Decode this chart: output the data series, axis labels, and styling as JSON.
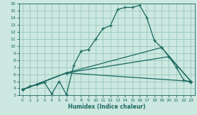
{
  "xlabel": "Humidex (Indice chaleur)",
  "xlim": [
    -0.5,
    23.5
  ],
  "ylim": [
    3,
    16
  ],
  "xticks": [
    0,
    1,
    2,
    3,
    4,
    5,
    6,
    7,
    8,
    9,
    10,
    11,
    12,
    13,
    14,
    15,
    16,
    17,
    18,
    19,
    20,
    21,
    22,
    23
  ],
  "yticks": [
    3,
    4,
    5,
    6,
    7,
    8,
    9,
    10,
    11,
    12,
    13,
    14,
    15,
    16
  ],
  "bg_color": "#cce8e0",
  "grid_color": "#9ac8bc",
  "line_color": "#1a6860",
  "lines": [
    {
      "x": [
        0,
        1,
        2,
        3,
        4,
        5,
        6,
        7,
        8,
        9,
        10,
        11,
        12,
        13,
        14,
        15,
        16,
        17,
        18,
        19,
        20,
        21,
        22,
        23
      ],
      "y": [
        3.8,
        4.3,
        4.5,
        4.8,
        3.2,
        5.0,
        3.1,
        7.3,
        9.3,
        9.5,
        11.0,
        12.5,
        12.9,
        15.2,
        15.5,
        15.5,
        15.8,
        14.0,
        10.8,
        9.8,
        8.5,
        7.0,
        5.2,
        4.8
      ]
    },
    {
      "x": [
        0,
        6,
        23
      ],
      "y": [
        3.8,
        6.2,
        5.0
      ]
    },
    {
      "x": [
        0,
        6,
        20,
        23
      ],
      "y": [
        3.8,
        6.2,
        8.5,
        5.0
      ]
    },
    {
      "x": [
        0,
        6,
        19,
        23
      ],
      "y": [
        3.8,
        6.2,
        9.8,
        5.0
      ]
    }
  ]
}
